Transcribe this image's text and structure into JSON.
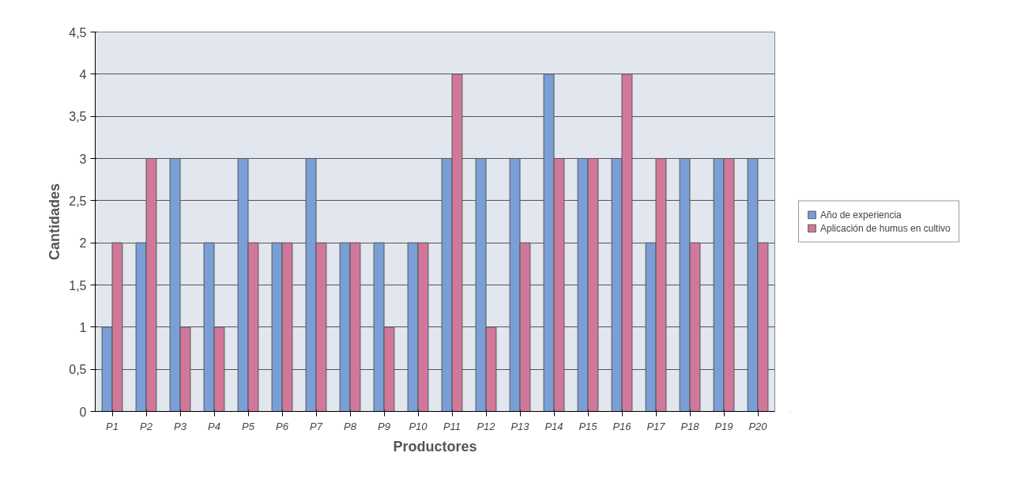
{
  "chart_data": {
    "type": "bar",
    "xlabel": "Productores",
    "ylabel": "Cantidades",
    "categories": [
      "P1",
      "P2",
      "P3",
      "P4",
      "P5",
      "P6",
      "P7",
      "P8",
      "P9",
      "P10",
      "P11",
      "P12",
      "P13",
      "P14",
      "P15",
      "P16",
      "P17",
      "P18",
      "P19",
      "P20"
    ],
    "series": [
      {
        "name": "Año de experiencia",
        "color": "#7a9ed6",
        "values": [
          1,
          2,
          3,
          2,
          3,
          2,
          3,
          2,
          2,
          2,
          3,
          3,
          3,
          4,
          3,
          3,
          2,
          3,
          3,
          3
        ]
      },
      {
        "name": "Aplicación de humus en cultivo",
        "color": "#d0789a",
        "values": [
          2,
          3,
          1,
          1,
          2,
          2,
          2,
          2,
          1,
          2,
          4,
          1,
          2,
          3,
          3,
          4,
          3,
          2,
          3,
          2
        ]
      }
    ],
    "ylim": [
      0,
      4.5
    ],
    "yticks": [
      0,
      {
        "value": 0.5,
        "label": "0,5"
      },
      1,
      {
        "value": 1.5,
        "label": "1,5"
      },
      2,
      {
        "value": 2.5,
        "label": "2,5"
      },
      3,
      {
        "value": 3.5,
        "label": "3,5"
      },
      4,
      {
        "value": 4.5,
        "label": "4,5"
      }
    ],
    "grid": "y",
    "legend": "right"
  }
}
